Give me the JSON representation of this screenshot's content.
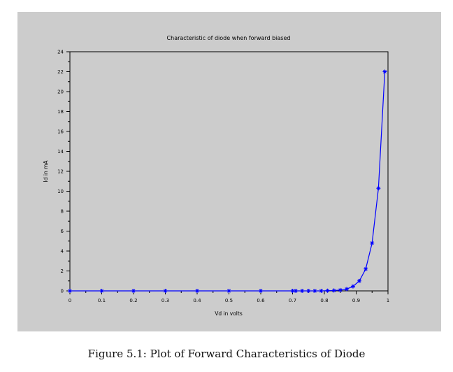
{
  "caption": "Figure 5.1: Plot of Forward Characteristics of Diode",
  "chart_data": {
    "type": "line",
    "title": "Characteristic of diode when forward biased",
    "xlabel": "Vd in volts",
    "ylabel": "Id in mA",
    "xlim": [
      0,
      1
    ],
    "ylim": [
      0,
      24
    ],
    "x_ticks": [
      "0",
      "0.1",
      "0.2",
      "0.3",
      "0.4",
      "0.5",
      "0.6",
      "0.7",
      "0.8",
      "0.9",
      "1"
    ],
    "y_ticks": [
      "0",
      "2",
      "4",
      "6",
      "8",
      "10",
      "12",
      "14",
      "16",
      "18",
      "20",
      "22",
      "24"
    ],
    "grid": false,
    "marker": "star",
    "line_color": "#0000ff",
    "series": [
      {
        "x": [
          0,
          0.1,
          0.2,
          0.3,
          0.4,
          0.5,
          0.6,
          0.7,
          0.71,
          0.73,
          0.75,
          0.77,
          0.79,
          0.81,
          0.83,
          0.85,
          0.87,
          0.89,
          0.91,
          0.93,
          0.95,
          0.97,
          0.99
        ],
        "y": [
          0,
          0,
          0,
          0,
          0,
          0,
          0,
          0,
          0,
          0,
          0,
          0,
          0,
          0.02,
          0.04,
          0.08,
          0.18,
          0.45,
          1.0,
          2.2,
          4.8,
          10.3,
          22.0
        ]
      }
    ]
  }
}
